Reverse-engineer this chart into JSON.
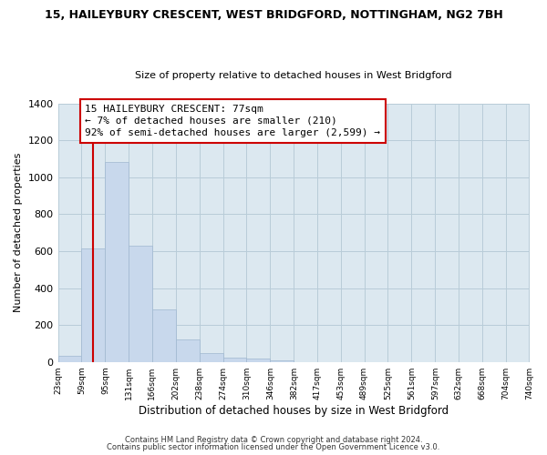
{
  "title1": "15, HAILEYBURY CRESCENT, WEST BRIDGFORD, NOTTINGHAM, NG2 7BH",
  "title2": "Size of property relative to detached houses in West Bridgford",
  "xlabel": "Distribution of detached houses by size in West Bridgford",
  "ylabel": "Number of detached properties",
  "bin_edges": [
    23,
    59,
    95,
    131,
    166,
    202,
    238,
    274,
    310,
    346,
    382,
    417,
    453,
    489,
    525,
    561,
    597,
    632,
    668,
    704,
    740
  ],
  "bin_heights": [
    35,
    615,
    1085,
    630,
    285,
    120,
    47,
    22,
    18,
    10,
    0,
    0,
    0,
    0,
    0,
    0,
    0,
    0,
    0,
    0
  ],
  "bar_color": "#c8d8ec",
  "bar_edgecolor": "#a0b8d0",
  "vline_x": 77,
  "vline_color": "#cc0000",
  "annotation_line1": "15 HAILEYBURY CRESCENT: 77sqm",
  "annotation_line2": "← 7% of detached houses are smaller (210)",
  "annotation_line3": "92% of semi-detached houses are larger (2,599) →",
  "annotation_box_edgecolor": "#cc0000",
  "annotation_box_facecolor": "#ffffff",
  "ylim": [
    0,
    1400
  ],
  "yticks": [
    0,
    200,
    400,
    600,
    800,
    1000,
    1200,
    1400
  ],
  "tick_labels": [
    "23sqm",
    "59sqm",
    "95sqm",
    "131sqm",
    "166sqm",
    "202sqm",
    "238sqm",
    "274sqm",
    "310sqm",
    "346sqm",
    "382sqm",
    "417sqm",
    "453sqm",
    "489sqm",
    "525sqm",
    "561sqm",
    "597sqm",
    "632sqm",
    "668sqm",
    "704sqm",
    "740sqm"
  ],
  "footer1": "Contains HM Land Registry data © Crown copyright and database right 2024.",
  "footer2": "Contains public sector information licensed under the Open Government Licence v3.0.",
  "bg_color": "#ffffff",
  "plot_bg_color": "#dce8f0",
  "grid_color": "#b8ccd8",
  "title1_fontsize": 9,
  "title2_fontsize": 8,
  "ylabel_fontsize": 8,
  "xlabel_fontsize": 8.5,
  "tick_fontsize": 6.5,
  "ytick_fontsize": 8,
  "ann_fontsize": 8,
  "footer_fontsize": 6
}
